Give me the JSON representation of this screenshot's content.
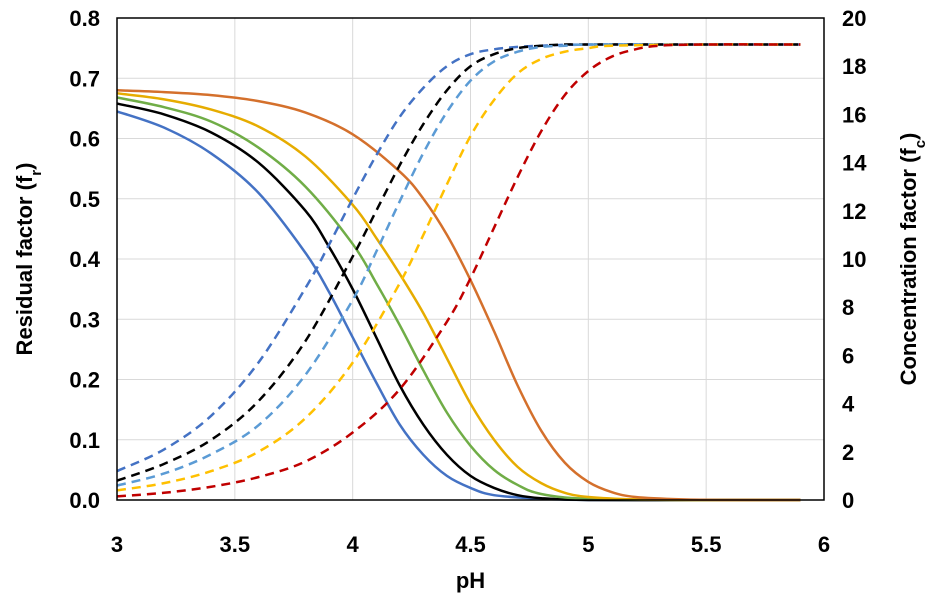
{
  "chart_data": {
    "type": "line",
    "title": "",
    "xlabel": "pH",
    "ylabel_left": {
      "text": "Residual factor (f",
      "sub": "r",
      "close": ")"
    },
    "ylabel_right": {
      "text": "Concentration factor (f",
      "sub": "c",
      "close": ")"
    },
    "xlim": [
      3,
      6
    ],
    "ylim_left": [
      0,
      0.8
    ],
    "ylim_right": [
      0,
      20
    ],
    "x_ticks": [
      "3",
      "3.5",
      "4",
      "4.5",
      "5",
      "5.5",
      "6"
    ],
    "y_left_ticks": [
      "0.0",
      "0.1",
      "0.2",
      "0.3",
      "0.4",
      "0.5",
      "0.6",
      "0.7",
      "0.8"
    ],
    "y_right_ticks": [
      "0",
      "2",
      "4",
      "6",
      "8",
      "10",
      "12",
      "14",
      "16",
      "18",
      "20"
    ],
    "grid": true,
    "legend": "none",
    "series_residual": [
      {
        "color": "#4472C4",
        "axis": "left",
        "style": "solid",
        "x": [
          3.0,
          3.2,
          3.4,
          3.6,
          3.8,
          3.9,
          4.0,
          4.1,
          4.2,
          4.3,
          4.4,
          4.5,
          4.6,
          4.8,
          5.0,
          5.5,
          5.9
        ],
        "y": [
          0.645,
          0.618,
          0.575,
          0.51,
          0.41,
          0.345,
          0.27,
          0.195,
          0.125,
          0.075,
          0.04,
          0.02,
          0.008,
          0.002,
          0.0,
          0.0,
          0.0
        ]
      },
      {
        "color": "#000000",
        "axis": "left",
        "style": "solid",
        "x": [
          3.0,
          3.2,
          3.4,
          3.6,
          3.8,
          3.9,
          4.0,
          4.1,
          4.2,
          4.3,
          4.4,
          4.5,
          4.6,
          4.7,
          4.8,
          5.0,
          5.5,
          5.9
        ],
        "y": [
          0.658,
          0.64,
          0.61,
          0.56,
          0.48,
          0.42,
          0.35,
          0.27,
          0.19,
          0.125,
          0.075,
          0.04,
          0.02,
          0.008,
          0.003,
          0.0,
          0.0,
          0.0
        ]
      },
      {
        "color": "#70AD47",
        "axis": "left",
        "style": "solid",
        "x": [
          3.0,
          3.2,
          3.4,
          3.6,
          3.8,
          4.0,
          4.1,
          4.2,
          4.3,
          4.4,
          4.5,
          4.6,
          4.7,
          4.8,
          5.0,
          5.5,
          5.9
        ],
        "y": [
          0.668,
          0.652,
          0.628,
          0.585,
          0.52,
          0.425,
          0.36,
          0.29,
          0.215,
          0.145,
          0.09,
          0.05,
          0.025,
          0.01,
          0.002,
          0.0,
          0.0
        ]
      },
      {
        "color": "#E6AC00",
        "axis": "left",
        "style": "solid",
        "x": [
          3.0,
          3.2,
          3.4,
          3.6,
          3.8,
          4.0,
          4.1,
          4.2,
          4.3,
          4.4,
          4.5,
          4.6,
          4.7,
          4.8,
          4.9,
          5.0,
          5.2,
          5.5,
          5.9
        ],
        "y": [
          0.675,
          0.665,
          0.648,
          0.62,
          0.57,
          0.49,
          0.435,
          0.375,
          0.31,
          0.235,
          0.16,
          0.1,
          0.055,
          0.028,
          0.012,
          0.005,
          0.001,
          0.0,
          0.0
        ]
      },
      {
        "color": "#D4702C",
        "axis": "left",
        "style": "solid",
        "x": [
          3.0,
          3.2,
          3.4,
          3.6,
          3.8,
          4.0,
          4.2,
          4.3,
          4.4,
          4.5,
          4.6,
          4.7,
          4.8,
          4.9,
          5.0,
          5.1,
          5.2,
          5.4,
          5.6,
          5.9
        ],
        "y": [
          0.68,
          0.677,
          0.672,
          0.662,
          0.643,
          0.607,
          0.545,
          0.5,
          0.44,
          0.365,
          0.28,
          0.19,
          0.115,
          0.062,
          0.03,
          0.013,
          0.005,
          0.001,
          0.0,
          0.0
        ]
      }
    ],
    "series_concentration": [
      {
        "color": "#4472C4",
        "axis": "right",
        "style": "dashed",
        "x": [
          3.0,
          3.2,
          3.4,
          3.6,
          3.8,
          3.9,
          4.0,
          4.1,
          4.2,
          4.3,
          4.4,
          4.5,
          4.6,
          4.7,
          4.8,
          5.0,
          5.5,
          5.9
        ],
        "y": [
          1.2,
          2.1,
          3.5,
          5.7,
          8.8,
          10.6,
          12.5,
          14.3,
          15.9,
          17.1,
          18.0,
          18.5,
          18.7,
          18.8,
          18.85,
          18.9,
          18.9,
          18.9
        ]
      },
      {
        "color": "#000000",
        "axis": "right",
        "style": "dashed",
        "x": [
          3.0,
          3.2,
          3.4,
          3.6,
          3.8,
          4.0,
          4.1,
          4.2,
          4.3,
          4.4,
          4.5,
          4.6,
          4.7,
          4.8,
          4.9,
          5.0,
          5.5,
          5.9
        ],
        "y": [
          0.8,
          1.5,
          2.5,
          4.1,
          6.6,
          10.1,
          12.0,
          13.9,
          15.6,
          17.0,
          18.0,
          18.5,
          18.75,
          18.85,
          18.9,
          18.9,
          18.9,
          18.9
        ]
      },
      {
        "color": "#5B9BD5",
        "axis": "right",
        "style": "dashed",
        "x": [
          3.0,
          3.2,
          3.4,
          3.6,
          3.8,
          4.0,
          4.1,
          4.2,
          4.3,
          4.4,
          4.5,
          4.6,
          4.7,
          4.8,
          4.9,
          5.0,
          5.5,
          5.9
        ],
        "y": [
          0.6,
          1.1,
          1.9,
          3.1,
          5.2,
          8.3,
          10.3,
          12.4,
          14.4,
          16.1,
          17.4,
          18.2,
          18.6,
          18.8,
          18.85,
          18.9,
          18.9,
          18.9
        ]
      },
      {
        "color": "#FFC000",
        "axis": "right",
        "style": "dashed",
        "x": [
          3.0,
          3.2,
          3.4,
          3.6,
          3.8,
          4.0,
          4.2,
          4.3,
          4.4,
          4.5,
          4.6,
          4.7,
          4.8,
          4.9,
          5.0,
          5.1,
          5.5,
          5.9
        ],
        "y": [
          0.4,
          0.7,
          1.2,
          2.0,
          3.4,
          5.7,
          9.0,
          11.0,
          13.1,
          15.1,
          16.6,
          17.7,
          18.3,
          18.6,
          18.75,
          18.85,
          18.9,
          18.9
        ]
      },
      {
        "color": "#C00000",
        "axis": "right",
        "style": "dashed",
        "x": [
          3.0,
          3.2,
          3.4,
          3.6,
          3.8,
          4.0,
          4.2,
          4.4,
          4.5,
          4.6,
          4.7,
          4.8,
          4.9,
          5.0,
          5.1,
          5.2,
          5.3,
          5.5,
          5.9
        ],
        "y": [
          0.15,
          0.3,
          0.55,
          0.95,
          1.6,
          2.8,
          4.6,
          7.4,
          9.2,
          11.3,
          13.4,
          15.3,
          16.8,
          17.8,
          18.4,
          18.7,
          18.85,
          18.9,
          18.9
        ]
      }
    ]
  }
}
